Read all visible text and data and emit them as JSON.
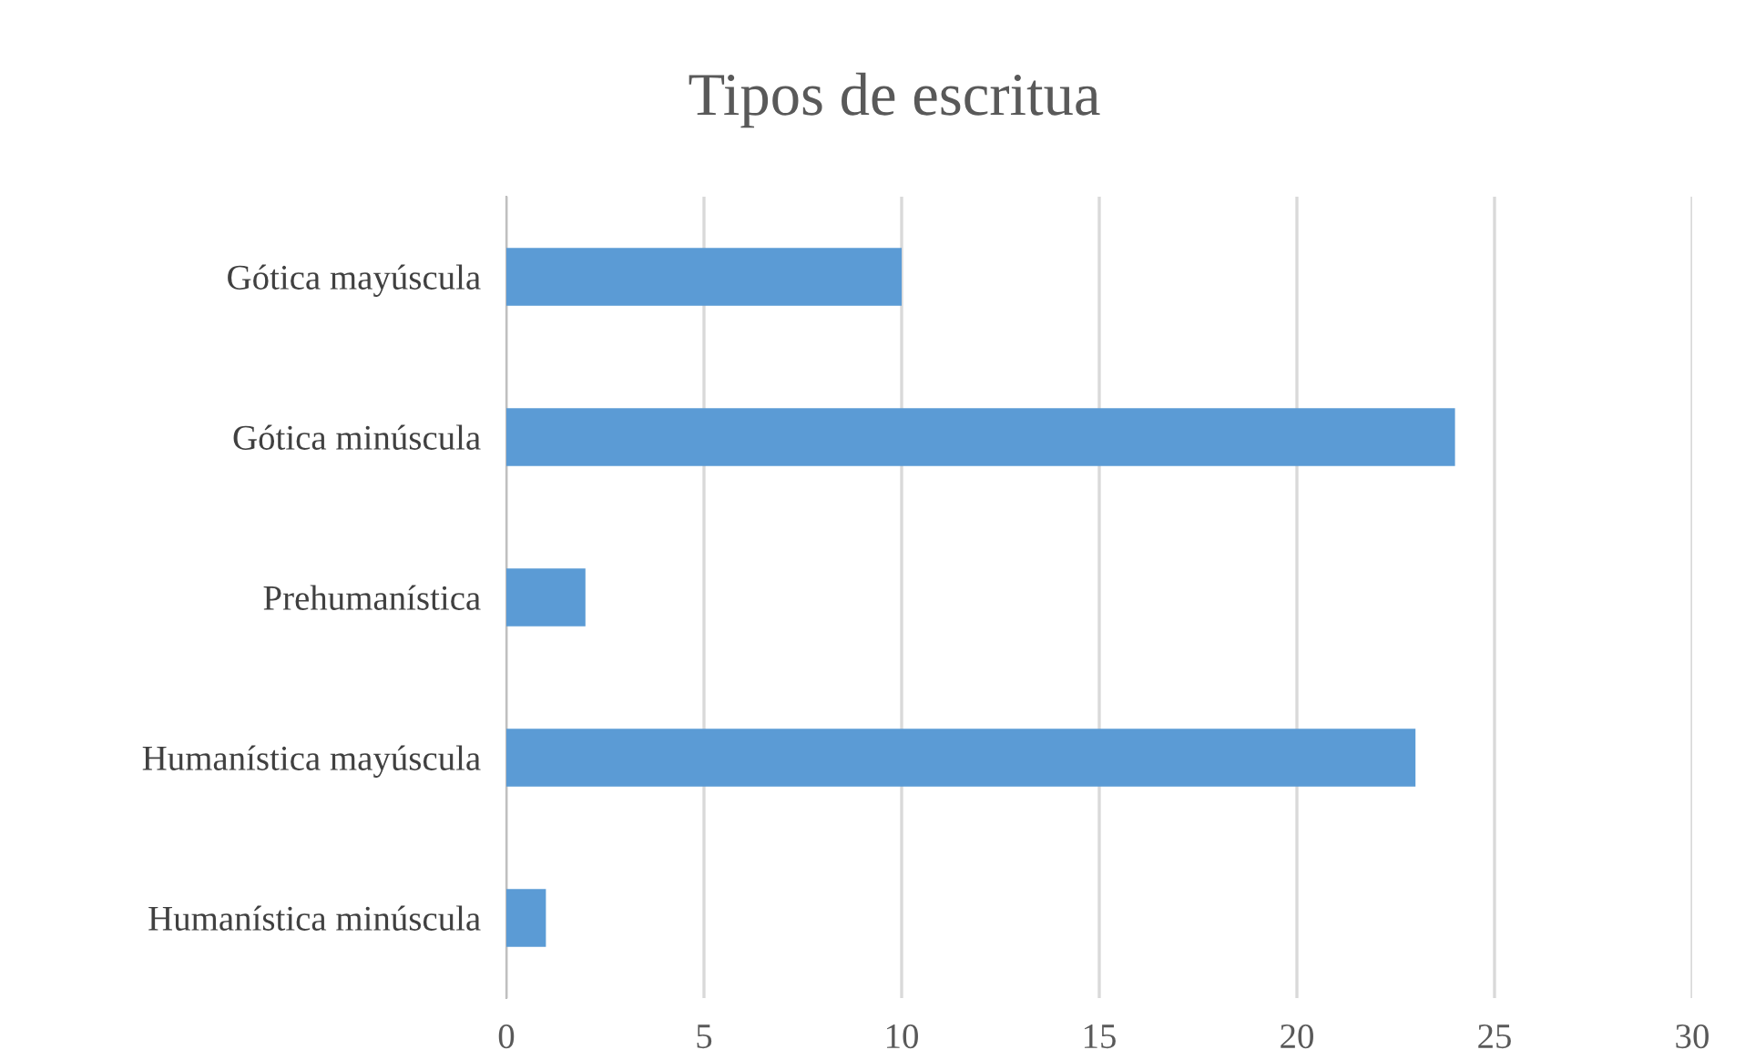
{
  "chart_data": {
    "type": "bar",
    "orientation": "horizontal",
    "title": "Tipos de escritua",
    "categories": [
      "Gótica mayúscula",
      "Gótica minúscula",
      "Prehumanística",
      "Humanística mayúscula",
      "Humanística minúscula"
    ],
    "values": [
      10,
      24,
      2,
      23,
      1
    ],
    "color": "#5b9bd5",
    "xlim": [
      0,
      30
    ],
    "xticks": [
      0,
      5,
      10,
      15,
      20,
      25,
      30
    ],
    "grid": "x",
    "legend": false
  }
}
